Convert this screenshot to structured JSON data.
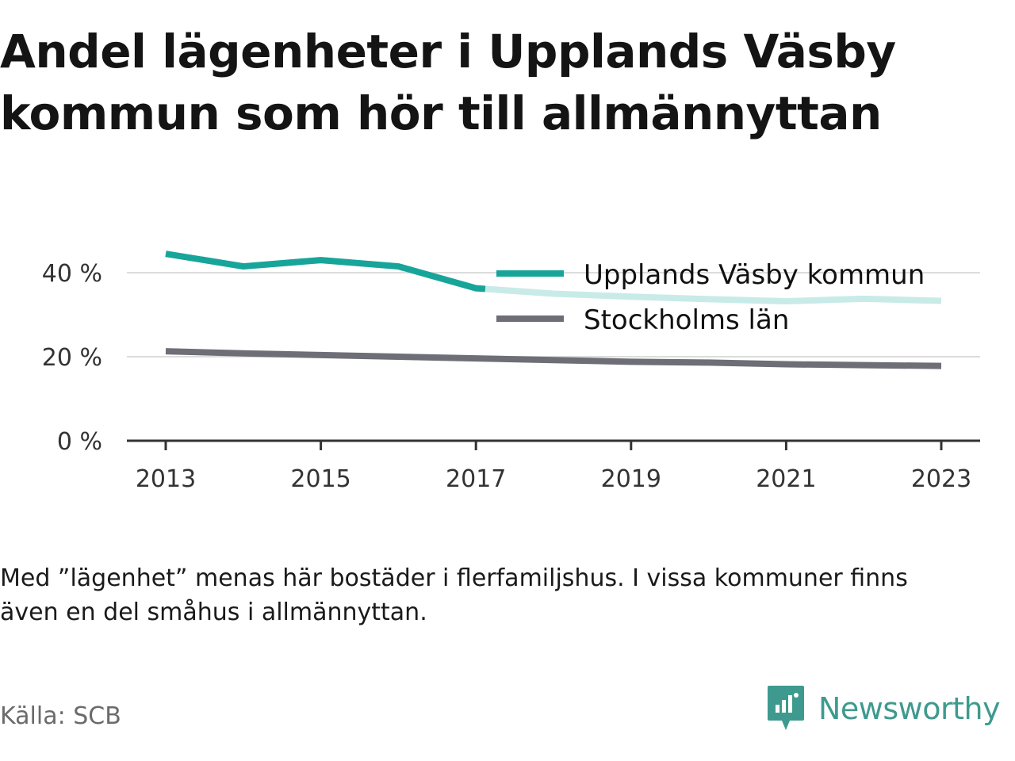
{
  "title_line1": "Andel lägenheter i Upplands Väsby",
  "title_line2": "kommun som hör till allmännyttan",
  "note_line1": "Med ”lägenhet” menas här bostäder i flerfamiljshus. I vissa kommuner finns",
  "note_line2": "även en del småhus i allmännyttan.",
  "source": "Källa: SCB",
  "brand": {
    "name": "Newsworthy",
    "icon": "newsworthy-logo-icon",
    "color": "#3e9a8e"
  },
  "colors": {
    "upplands": "#17a59a",
    "upplands_faded": "#c8ebe7",
    "stockholm": "#6e6e76",
    "grid": "#dcdcdc",
    "axis": "#333333",
    "tick_text": "#333333"
  },
  "chart_data": {
    "type": "line",
    "x": [
      2013,
      2014,
      2015,
      2016,
      2017,
      2018,
      2019,
      2020,
      2021,
      2022,
      2023
    ],
    "xticks": [
      "2013",
      "2015",
      "2017",
      "2019",
      "2021",
      "2023"
    ],
    "yticks": [
      "0 %",
      "20 %",
      "40 %"
    ],
    "ylim": [
      0,
      50
    ],
    "xlim": [
      2012.5,
      2023.5
    ],
    "grid": true,
    "legend_position": "top-right",
    "series": [
      {
        "name": "Upplands Väsby kommun",
        "values": [
          44.5,
          41.5,
          43.0,
          41.5,
          36.3,
          35.0,
          34.3,
          33.7,
          33.2,
          33.8,
          33.3
        ]
      },
      {
        "name": "Stockholms län",
        "values": [
          21.3,
          20.8,
          20.4,
          20.0,
          19.6,
          19.2,
          18.8,
          18.6,
          18.2,
          18.0,
          17.8
        ]
      }
    ]
  }
}
